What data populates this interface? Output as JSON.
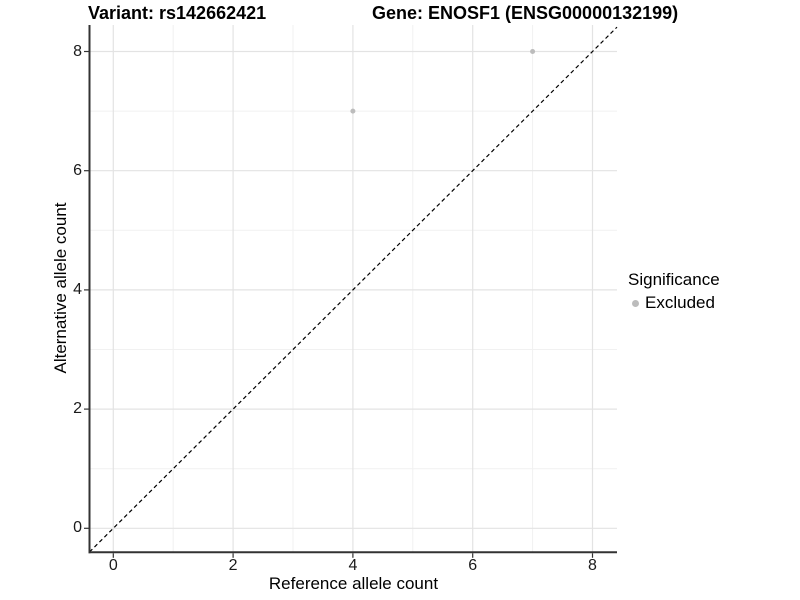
{
  "header": {
    "title_left": "Variant: rs142662421",
    "title_right": "Gene: ENOSF1 (ENSG00000132199)"
  },
  "chart_data": {
    "type": "scatter",
    "xlabel": "Reference allele count",
    "ylabel": "Alternative allele count",
    "xticks": [
      0,
      2,
      4,
      6,
      8
    ],
    "yticks": [
      0,
      2,
      4,
      6,
      8
    ],
    "xminor": [
      1,
      3,
      5,
      7
    ],
    "yminor": [
      1,
      3,
      5,
      7
    ],
    "xlim": [
      -0.4,
      8.4
    ],
    "ylim": [
      -0.4,
      8.45
    ],
    "grid": "major+minor",
    "identity_line": {
      "slope": 1,
      "intercept": 0,
      "style": "dashed",
      "color": "#000000"
    },
    "series": [
      {
        "name": "Excluded",
        "color": "#bcbcbc",
        "points": [
          {
            "x": 4,
            "y": 7
          },
          {
            "x": 7,
            "y": 8
          }
        ]
      }
    ],
    "legend": {
      "title": "Significance",
      "position": "right",
      "items": [
        {
          "label": "Excluded",
          "color": "#bcbcbc"
        }
      ]
    }
  },
  "colors": {
    "background": "#ffffff",
    "grid_major": "#e3e3e3",
    "grid_minor": "#f1f1f1",
    "axis_line": "#333333",
    "tick_mark": "#333333",
    "point": "#bcbcbc",
    "text": "#000000"
  }
}
